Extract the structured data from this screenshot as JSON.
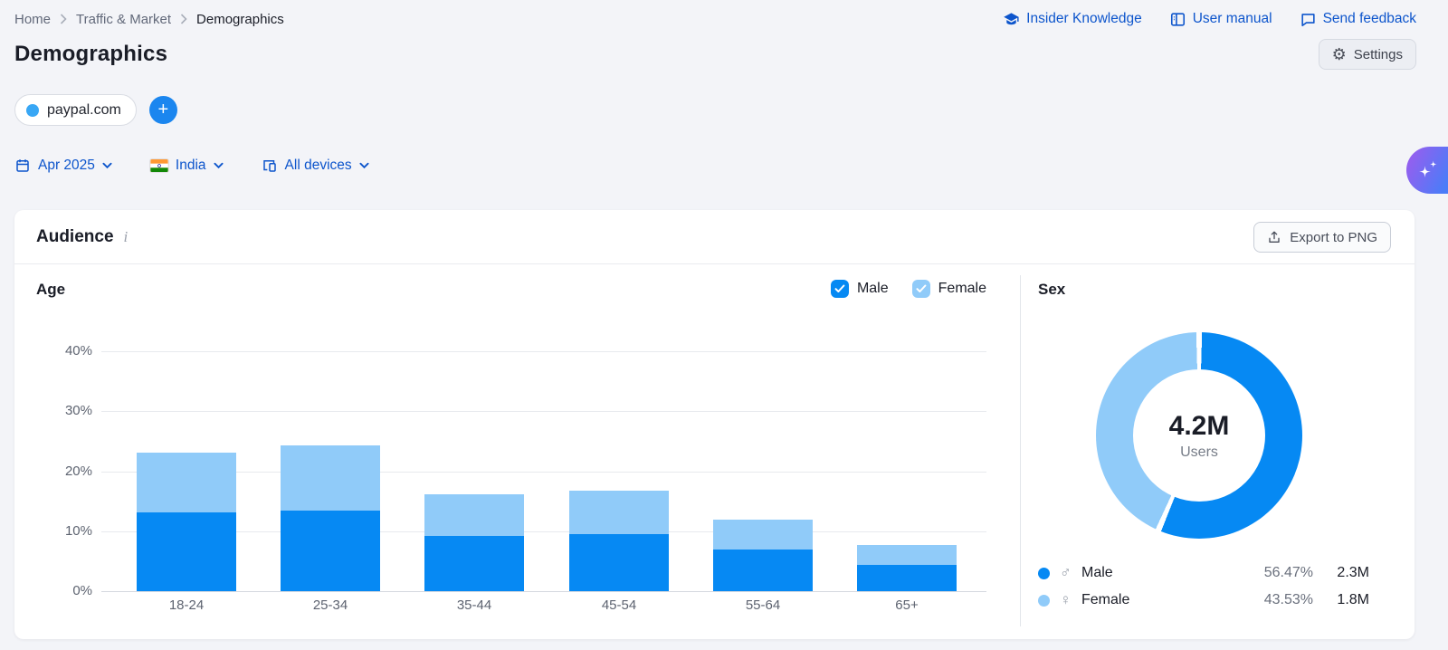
{
  "breadcrumb": {
    "items": [
      "Home",
      "Traffic & Market",
      "Demographics"
    ]
  },
  "topbar": {
    "links": [
      {
        "label": "Insider Knowledge",
        "icon": "graduation-cap-icon"
      },
      {
        "label": "User manual",
        "icon": "book-icon"
      },
      {
        "label": "Send feedback",
        "icon": "chat-bubble-icon"
      }
    ]
  },
  "page": {
    "title": "Demographics",
    "settings_label": "Settings"
  },
  "icons": {
    "settings": "⚙",
    "info": "i",
    "add": "+"
  },
  "targets": {
    "domain": "paypal.com"
  },
  "filters": {
    "date": "Apr 2025",
    "location": "India",
    "devices": "All devices"
  },
  "audience_card": {
    "title": "Audience",
    "export_label": "Export to PNG"
  },
  "age_chart": {
    "title": "Age",
    "legend": [
      {
        "label": "Male",
        "color": "#0689f3"
      },
      {
        "label": "Female",
        "color": "#90cbf9"
      }
    ]
  },
  "sex_chart": {
    "title": "Sex",
    "center_value": "4.2M",
    "center_label": "Users",
    "rows": [
      {
        "label": "Male",
        "symbol": "♂",
        "percent": "56.47%",
        "value": "2.3M",
        "color": "#0689f3"
      },
      {
        "label": "Female",
        "symbol": "♀",
        "percent": "43.53%",
        "value": "1.8M",
        "color": "#90cbf9"
      }
    ]
  },
  "colors": {
    "male": "#0689f3",
    "female": "#90cbf9",
    "link_blue": "#0d55cc",
    "chip_dot": "#38a7f5",
    "add_button": "#1b86ef"
  },
  "chart_data": [
    {
      "type": "bar",
      "stacked": true,
      "title": "Age",
      "categories": [
        "18-24",
        "25-34",
        "35-44",
        "45-54",
        "55-64",
        "65+"
      ],
      "series": [
        {
          "name": "Male",
          "color": "#0689f3",
          "values": [
            13.1,
            13.4,
            9.2,
            9.5,
            6.9,
            4.4
          ]
        },
        {
          "name": "Female",
          "color": "#90cbf9",
          "values": [
            10.0,
            10.9,
            6.9,
            7.3,
            5.1,
            3.3
          ]
        }
      ],
      "xlabel": "",
      "ylabel": "",
      "ylim": [
        0,
        40
      ],
      "yticks": [
        0,
        10,
        20,
        30,
        40
      ],
      "ytick_labels": [
        "0%",
        "10%",
        "20%",
        "30%",
        "40%"
      ],
      "grid": true,
      "legend_position": "top-right"
    },
    {
      "type": "pie",
      "subtype": "donut",
      "title": "Sex",
      "center_value": "4.2M",
      "center_label": "Users",
      "slices": [
        {
          "name": "Male",
          "percent": 56.47,
          "value": "2.3M",
          "color": "#0689f3"
        },
        {
          "name": "Female",
          "percent": 43.53,
          "value": "1.8M",
          "color": "#90cbf9"
        }
      ]
    }
  ]
}
